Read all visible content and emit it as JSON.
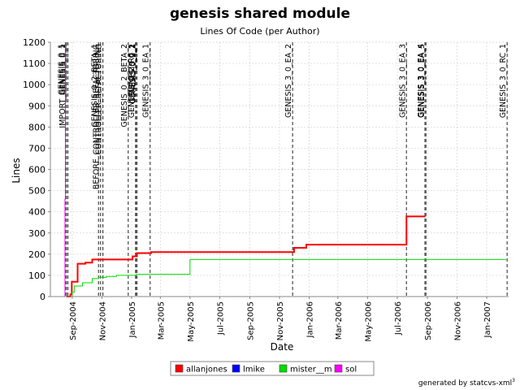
{
  "chart_data": {
    "type": "line",
    "title": "genesis shared module",
    "subtitle": "Lines Of Code (per Author)",
    "xlabel": "Date",
    "ylabel": "Lines",
    "x_range": [
      "2004-07-18",
      "2007-02-15"
    ],
    "ylim": [
      0,
      1200
    ],
    "y_ticks": [
      0,
      100,
      200,
      300,
      400,
      500,
      600,
      700,
      800,
      900,
      1000,
      1100,
      1200
    ],
    "x_ticks": [
      {
        "date": "2004-09-01",
        "label": "Sep-2004"
      },
      {
        "date": "2004-11-01",
        "label": "Nov-2004"
      },
      {
        "date": "2005-01-01",
        "label": "Jan-2005"
      },
      {
        "date": "2005-03-01",
        "label": "Mar-2005"
      },
      {
        "date": "2005-05-01",
        "label": "May-2005"
      },
      {
        "date": "2005-07-01",
        "label": "Jul-2005"
      },
      {
        "date": "2005-09-01",
        "label": "Sep-2005"
      },
      {
        "date": "2005-11-01",
        "label": "Nov-2005"
      },
      {
        "date": "2006-01-01",
        "label": "Jan-2006"
      },
      {
        "date": "2006-03-01",
        "label": "Mar-2006"
      },
      {
        "date": "2006-05-01",
        "label": "May-2006"
      },
      {
        "date": "2006-07-01",
        "label": "Jul-2006"
      },
      {
        "date": "2006-09-01",
        "label": "Sep-2006"
      },
      {
        "date": "2006-11-01",
        "label": "Nov-2006"
      },
      {
        "date": "2007-01-01",
        "label": "Jan-2007"
      }
    ],
    "grid": true,
    "legend_position": "bottom-center",
    "series": [
      {
        "name": "allanjones",
        "color": "#ff0000",
        "stroke": 2,
        "points": [
          [
            "2004-08-20",
            0
          ],
          [
            "2004-08-28",
            10
          ],
          [
            "2004-08-31",
            70
          ],
          [
            "2004-09-10",
            70
          ],
          [
            "2004-09-12",
            155
          ],
          [
            "2004-09-28",
            160
          ],
          [
            "2004-10-10",
            160
          ],
          [
            "2004-10-12",
            175
          ],
          [
            "2004-12-30",
            175
          ],
          [
            "2005-01-03",
            190
          ],
          [
            "2005-01-12",
            205
          ],
          [
            "2005-02-07",
            205
          ],
          [
            "2005-02-10",
            210
          ],
          [
            "2005-11-28",
            210
          ],
          [
            "2005-12-01",
            230
          ],
          [
            "2005-12-24",
            230
          ],
          [
            "2005-12-26",
            245
          ],
          [
            "2006-07-18",
            245
          ],
          [
            "2006-07-20",
            378
          ],
          [
            "2006-08-28",
            378
          ]
        ]
      },
      {
        "name": "lmike",
        "color": "#0000ff",
        "stroke": 1,
        "points": [
          [
            "2004-08-20",
            0
          ],
          [
            "2004-10-20",
            0
          ]
        ]
      },
      {
        "name": "mister__m",
        "color": "#00dd00",
        "stroke": 1,
        "points": [
          [
            "2004-08-28",
            0
          ],
          [
            "2004-09-01",
            20
          ],
          [
            "2004-09-05",
            50
          ],
          [
            "2004-09-20",
            50
          ],
          [
            "2004-09-22",
            65
          ],
          [
            "2004-10-10",
            65
          ],
          [
            "2004-10-12",
            85
          ],
          [
            "2004-10-25",
            90
          ],
          [
            "2004-11-10",
            95
          ],
          [
            "2004-12-01",
            100
          ],
          [
            "2005-01-10",
            105
          ],
          [
            "2005-04-28",
            105
          ],
          [
            "2005-05-01",
            175
          ],
          [
            "2007-02-10",
            175
          ]
        ]
      },
      {
        "name": "sol",
        "color": "#ff00ff",
        "stroke": 1,
        "points": [
          [
            "2004-08-17",
            0
          ],
          [
            "2004-08-17",
            460
          ],
          [
            "2004-08-18",
            460
          ],
          [
            "2004-08-18",
            1200
          ]
        ]
      }
    ],
    "annotations": [
      {
        "date": "2004-08-18",
        "label": "GENESIS_0_1"
      },
      {
        "date": "2004-08-20",
        "label": "IMPORT_GENESIS_0_1"
      },
      {
        "date": "2004-08-23",
        "label": "GENESIS_0_2"
      },
      {
        "date": "2004-10-25",
        "label": "GENESIS_0_2_BETA_1"
      },
      {
        "date": "2004-10-29",
        "label": "BEFORE_CONTROLLER_REFACTORING"
      },
      {
        "date": "2004-11-03",
        "label": "CONTROLLER_REFACTORING"
      },
      {
        "date": "2004-12-25",
        "label": "GENESIS_0_2_BETA_2"
      },
      {
        "date": "2005-01-09",
        "label": "GENESIS_0_2_RC_1"
      },
      {
        "date": "2005-01-10",
        "label": "GENESIS_0_2"
      },
      {
        "date": "2005-01-11",
        "label": "GENESIS_0_2_1"
      },
      {
        "date": "2005-01-12",
        "label": "GENESIS_0_2_2"
      },
      {
        "date": "2005-02-08",
        "label": "GENESIS_3_0_EA_1"
      },
      {
        "date": "2005-11-28",
        "label": "GENESIS_3_0_EA_2"
      },
      {
        "date": "2006-07-20",
        "label": "GENESIS_3_0_EA_3"
      },
      {
        "date": "2006-08-27",
        "label": "GENESIS_3_0_EA_4"
      },
      {
        "date": "2006-08-29",
        "label": "GENESIS_3_0_EA_5"
      },
      {
        "date": "2007-02-12",
        "label": "GENESIS_3_0_RC_1"
      }
    ]
  },
  "footer": "generated by statcvs-xml"
}
